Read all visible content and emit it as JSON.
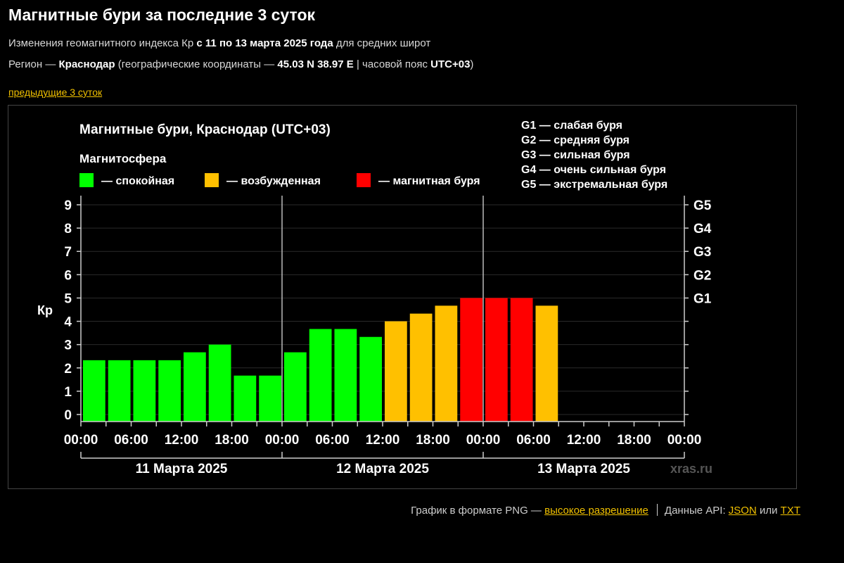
{
  "page": {
    "title": "Магнитные бури за последние 3 суток",
    "sub1": {
      "a": "Изменения геомагнитного индекса Кр ",
      "b": "с 11 по 13 марта 2025 года",
      "c": " для средних широт"
    },
    "sub2": {
      "a": "Регион — ",
      "b": "Краснодар",
      "c": " (географические координаты — ",
      "d": "45.03 N 38.97 E",
      "e": " | часовой пояс ",
      "f": "UTC+03",
      "g": ")"
    },
    "prev_link": "предыдущие 3 суток"
  },
  "footer": {
    "text1": "График в формате PNG — ",
    "hires_link": "высокое разрешение",
    "text2": "Данные API: ",
    "json_link": "JSON",
    "or": " или ",
    "txt_link": "TXT"
  },
  "chart_data": {
    "type": "bar",
    "title": "Магнитные бури, Краснодар (UTC+03)",
    "legend_title": "Магнитосфера",
    "legend": [
      {
        "label": "— спокойная",
        "color": "#00ff00"
      },
      {
        "label": "— возбужденная",
        "color": "#ffc000"
      },
      {
        "label": "— магнитная буря",
        "color": "#ff0000"
      }
    ],
    "g_legend": [
      "G1 — слабая буря",
      "G2 — средняя буря",
      "G3 — сильная буря",
      "G4 — очень сильная буря",
      "G5 — экстремальная буря"
    ],
    "ylabel": "Кр",
    "ylim": [
      0,
      9
    ],
    "y_ticks": [
      "0",
      "1",
      "2",
      "3",
      "4",
      "5",
      "6",
      "7",
      "8",
      "9"
    ],
    "right_ticks": [
      {
        "value": 5,
        "label": "G1"
      },
      {
        "value": 6,
        "label": "G2"
      },
      {
        "value": 7,
        "label": "G3"
      },
      {
        "value": 8,
        "label": "G4"
      },
      {
        "value": 9,
        "label": "G5"
      }
    ],
    "x_tick_labels": [
      "00:00",
      "06:00",
      "12:00",
      "18:00",
      "00:00",
      "06:00",
      "12:00",
      "18:00",
      "00:00",
      "06:00",
      "12:00",
      "18:00",
      "00:00"
    ],
    "days": [
      "11 Марта 2025",
      "12 Марта 2025",
      "13 Марта 2025"
    ],
    "slots_per_day": 8,
    "values": [
      2.33,
      2.33,
      2.33,
      2.33,
      2.67,
      3.0,
      1.67,
      1.67,
      2.67,
      3.67,
      3.67,
      3.33,
      4.0,
      4.33,
      4.67,
      5.0,
      5.0,
      5.0,
      4.67
    ],
    "levels": [
      "quiet",
      "quiet",
      "quiet",
      "quiet",
      "quiet",
      "quiet",
      "quiet",
      "quiet",
      "quiet",
      "quiet",
      "quiet",
      "quiet",
      "active",
      "active",
      "active",
      "storm",
      "storm",
      "storm",
      "active"
    ],
    "level_colors": {
      "quiet": "#00ff00",
      "active": "#ffc000",
      "storm": "#ff0000"
    },
    "watermark": "xras.ru",
    "grid": true
  }
}
